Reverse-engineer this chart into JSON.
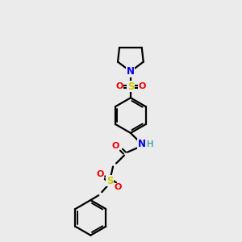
{
  "bg_color": "#ebebeb",
  "bond_color": "#000000",
  "atom_colors": {
    "N_top": "#0000ee",
    "N_amide": "#0000ee",
    "O": "#ee0000",
    "S": "#cccc00",
    "H": "#008888",
    "C": "#000000"
  },
  "figsize": [
    3.0,
    3.0
  ],
  "dpi": 100
}
